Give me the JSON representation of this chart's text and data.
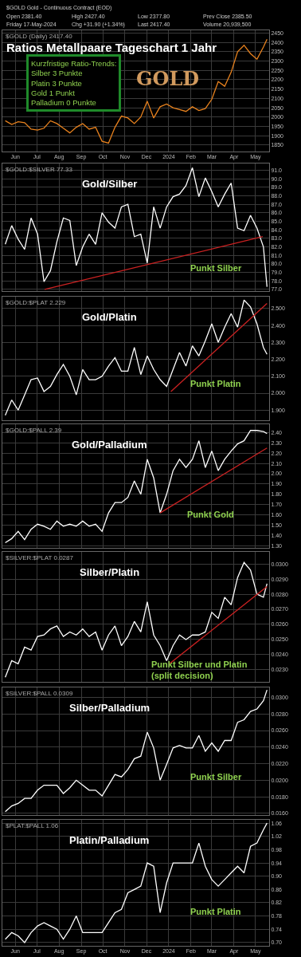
{
  "chart_data": [
    {
      "type": "line",
      "title": "Ratios Metallpaare Tageschart 1 Jahr",
      "subtitle": "$GOLD (Daily) 2417.40",
      "annotations": [
        "Kurzfristige Ratio-Trends:\nSilber 3 Punkte\nPlatin 3 Punkte\nGold 1 Punkt\nPalladium 0 Punkte",
        "GOLD",
        "$GOLD Gold - Continuous Contract (EOD)",
        "Open 2381.40",
        "High 2427.40",
        "Low 2377.80",
        "Prev Close 2385.50",
        "Friday 17-May-2024",
        "Chg +31.90 (+1.34%)",
        "Last 2417.40",
        "Volume 20,939,500"
      ],
      "x": [
        "2023-05-18",
        "2023-05-27",
        "2023-06-05",
        "2023-06-14",
        "2023-06-23",
        "2023-07-02",
        "2023-07-11",
        "2023-07-20",
        "2023-07-29",
        "2023-08-07",
        "2023-08-16",
        "2023-08-25",
        "2023-09-03",
        "2023-09-12",
        "2023-09-21",
        "2023-09-30",
        "2023-10-09",
        "2023-10-18",
        "2023-10-27",
        "2023-11-05",
        "2023-11-14",
        "2023-11-23",
        "2023-12-02",
        "2023-12-11",
        "2023-12-20",
        "2023-12-29",
        "2024-01-07",
        "2024-01-16",
        "2024-01-25",
        "2024-02-03",
        "2024-02-12",
        "2024-02-21",
        "2024-03-01",
        "2024-03-10",
        "2024-03-19",
        "2024-03-28",
        "2024-04-06",
        "2024-04-15",
        "2024-04-24",
        "2024-05-03",
        "2024-05-12",
        "2024-05-17"
      ],
      "series": [
        {
          "color": "#e8821e",
          "values": [
            1980,
            1960,
            1975,
            1970,
            1935,
            1930,
            1940,
            1980,
            1965,
            1940,
            1915,
            1945,
            1965,
            1935,
            1945,
            1870,
            1860,
            1945,
            2005,
            1995,
            1965,
            2000,
            2085,
            1995,
            2055,
            2070,
            2050,
            2040,
            2030,
            2055,
            2035,
            2045,
            2095,
            2190,
            2165,
            2240,
            2350,
            2385,
            2340,
            2310,
            2375,
            2417
          ]
        }
      ],
      "xlim": [
        "2023-05-14",
        "2024-05-20"
      ],
      "xticks": [
        {
          "value": "2023-06-01",
          "label": "Jun"
        },
        {
          "value": "2023-07-01",
          "label": "Jul"
        },
        {
          "value": "2023-08-01",
          "label": "Aug"
        },
        {
          "value": "2023-09-01",
          "label": "Sep"
        },
        {
          "value": "2023-10-01",
          "label": "Oct"
        },
        {
          "value": "2023-11-01",
          "label": "Nov"
        },
        {
          "value": "2023-12-01",
          "label": "Dec"
        },
        {
          "value": "2024-01-01",
          "label": "2024"
        },
        {
          "value": "2024-02-01",
          "label": "Feb"
        },
        {
          "value": "2024-03-01",
          "label": "Mar"
        },
        {
          "value": "2024-04-01",
          "label": "Apr"
        },
        {
          "value": "2024-05-01",
          "label": "May"
        }
      ],
      "ylim": [
        1815,
        2465
      ],
      "yticks": [
        1850,
        1900,
        1950,
        2000,
        2050,
        2100,
        2150,
        2200,
        2250,
        2300,
        2350,
        2400,
        2450
      ],
      "grid": true
    },
    {
      "type": "line",
      "title": "Gold/Silber",
      "subtitle": "$GOLD:$SILVER 77.33",
      "annotations": [
        "Punkt Silber"
      ],
      "x": [
        "2023-05-18",
        "2023-05-27",
        "2023-06-05",
        "2023-06-14",
        "2023-06-23",
        "2023-07-02",
        "2023-07-11",
        "2023-07-20",
        "2023-07-29",
        "2023-08-07",
        "2023-08-16",
        "2023-08-25",
        "2023-09-03",
        "2023-09-12",
        "2023-09-21",
        "2023-09-30",
        "2023-10-09",
        "2023-10-18",
        "2023-10-27",
        "2023-11-05",
        "2023-11-14",
        "2023-11-23",
        "2023-12-02",
        "2023-12-11",
        "2023-12-20",
        "2023-12-29",
        "2024-01-07",
        "2024-01-16",
        "2024-01-25",
        "2024-02-03",
        "2024-02-12",
        "2024-02-21",
        "2024-03-01",
        "2024-03-10",
        "2024-03-19",
        "2024-03-28",
        "2024-04-06",
        "2024-04-15",
        "2024-04-24",
        "2024-05-03",
        "2024-05-12",
        "2024-05-17"
      ],
      "series": [
        {
          "color": "#ffffff",
          "values": [
            82.3,
            84.5,
            82.9,
            81.7,
            85.4,
            83.5,
            77.9,
            79.2,
            82.6,
            85.4,
            85.1,
            79.8,
            82.0,
            83.5,
            82.3,
            86.0,
            84.9,
            84.2,
            86.7,
            87.0,
            83.2,
            83.5,
            80.1,
            86.7,
            84.2,
            86.7,
            87.9,
            88.2,
            89.2,
            91.3,
            87.9,
            90.1,
            88.5,
            86.7,
            88.2,
            89.5,
            84.2,
            83.9,
            85.7,
            84.2,
            82.0,
            77.3
          ]
        },
        {
          "type": "line",
          "color": "#cc2222",
          "x": [
            "2023-07-12",
            "2024-05-11"
          ],
          "values": [
            77.0,
            83.2
          ]
        }
      ],
      "xlim": [
        "2023-05-14",
        "2024-05-20"
      ],
      "xticks": [
        {
          "value": "2023-06-01",
          "label": null
        },
        {
          "value": "2023-07-01",
          "label": null
        },
        {
          "value": "2023-08-01",
          "label": null
        },
        {
          "value": "2023-09-01",
          "label": null
        },
        {
          "value": "2023-10-01",
          "label": null
        },
        {
          "value": "2023-11-01",
          "label": null
        },
        {
          "value": "2023-12-01",
          "label": null
        },
        {
          "value": "2024-01-01",
          "label": null
        },
        {
          "value": "2024-02-01",
          "label": null
        },
        {
          "value": "2024-03-01",
          "label": null
        },
        {
          "value": "2024-04-01",
          "label": null
        },
        {
          "value": "2024-05-01",
          "label": null
        }
      ],
      "ylim": [
        76.8,
        91.8
      ],
      "yticks": [
        {
          "value": 77,
          "label": "77.0"
        },
        {
          "value": 78,
          "label": "78.0"
        },
        {
          "value": 79,
          "label": "79.0"
        },
        {
          "value": 80,
          "label": "80.0"
        },
        {
          "value": 81,
          "label": "81.0"
        },
        {
          "value": 82,
          "label": "82.0"
        },
        {
          "value": 83,
          "label": "83.0"
        },
        {
          "value": 84,
          "label": "84.0"
        },
        {
          "value": 85,
          "label": "85.0"
        },
        {
          "value": 86,
          "label": "86.0"
        },
        {
          "value": 87,
          "label": "87.0"
        },
        {
          "value": 88,
          "label": "88.0"
        },
        {
          "value": 89,
          "label": "89.0"
        },
        {
          "value": 90,
          "label": "90.0"
        },
        {
          "value": 91,
          "label": "91.0"
        }
      ],
      "grid": true,
      "tick_labels": "y"
    },
    {
      "type": "line",
      "title": "Gold/Platin",
      "subtitle": "$GOLD:$PLAT 2.229",
      "annotations": [
        "Punkt Platin"
      ],
      "x": [
        "2023-05-18",
        "2023-05-27",
        "2023-06-05",
        "2023-06-14",
        "2023-06-23",
        "2023-07-02",
        "2023-07-11",
        "2023-07-20",
        "2023-07-29",
        "2023-08-07",
        "2023-08-16",
        "2023-08-25",
        "2023-09-03",
        "2023-09-12",
        "2023-09-21",
        "2023-09-30",
        "2023-10-09",
        "2023-10-18",
        "2023-10-27",
        "2023-11-05",
        "2023-11-14",
        "2023-11-23",
        "2023-12-02",
        "2023-12-11",
        "2023-12-20",
        "2023-12-29",
        "2024-01-07",
        "2024-01-16",
        "2024-01-25",
        "2024-02-03",
        "2024-02-12",
        "2024-02-21",
        "2024-03-01",
        "2024-03-10",
        "2024-03-19",
        "2024-03-28",
        "2024-04-06",
        "2024-04-15",
        "2024-04-24",
        "2024-05-03",
        "2024-05-12",
        "2024-05-17"
      ],
      "series": [
        {
          "color": "#ffffff",
          "values": [
            1.87,
            1.96,
            1.9,
            1.99,
            2.08,
            2.09,
            2.01,
            2.04,
            2.11,
            2.17,
            2.1,
            1.99,
            2.14,
            2.08,
            2.08,
            2.1,
            2.16,
            2.21,
            2.13,
            2.13,
            2.27,
            2.11,
            2.22,
            2.14,
            2.08,
            2.04,
            2.14,
            2.24,
            2.16,
            2.28,
            2.22,
            2.31,
            2.41,
            2.3,
            2.39,
            2.47,
            2.39,
            2.55,
            2.51,
            2.41,
            2.27,
            2.23
          ]
        },
        {
          "type": "line",
          "color": "#cc2222",
          "x": [
            "2024-01-04",
            "2024-05-17"
          ],
          "values": [
            2.01,
            2.53
          ]
        }
      ],
      "xlim": [
        "2023-05-14",
        "2024-05-20"
      ],
      "xticks": [
        {
          "value": "2023-06-01",
          "label": null
        },
        {
          "value": "2023-07-01",
          "label": null
        },
        {
          "value": "2023-08-01",
          "label": null
        },
        {
          "value": "2023-09-01",
          "label": null
        },
        {
          "value": "2023-10-01",
          "label": null
        },
        {
          "value": "2023-11-01",
          "label": null
        },
        {
          "value": "2023-12-01",
          "label": null
        },
        {
          "value": "2024-01-01",
          "label": null
        },
        {
          "value": "2024-02-01",
          "label": null
        },
        {
          "value": "2024-03-01",
          "label": null
        },
        {
          "value": "2024-04-01",
          "label": null
        },
        {
          "value": "2024-05-01",
          "label": null
        }
      ],
      "ylim": [
        1.84,
        2.57
      ],
      "yticks": [
        {
          "value": 1.9,
          "label": "1.900"
        },
        {
          "value": 2.0,
          "label": "2.000"
        },
        {
          "value": 2.1,
          "label": "2.100"
        },
        {
          "value": 2.2,
          "label": "2.200"
        },
        {
          "value": 2.3,
          "label": "2.300"
        },
        {
          "value": 2.4,
          "label": "2.400"
        },
        {
          "value": 2.5,
          "label": "2.500"
        }
      ],
      "grid": true,
      "tick_labels": "y"
    },
    {
      "type": "line",
      "title": "Gold/Palladium",
      "subtitle": "$GOLD:$PALL 2.39",
      "annotations": [
        "Punkt Gold"
      ],
      "x": [
        "2023-05-18",
        "2023-05-27",
        "2023-06-05",
        "2023-06-14",
        "2023-06-23",
        "2023-07-02",
        "2023-07-11",
        "2023-07-20",
        "2023-07-29",
        "2023-08-07",
        "2023-08-16",
        "2023-08-25",
        "2023-09-03",
        "2023-09-12",
        "2023-09-21",
        "2023-09-30",
        "2023-10-09",
        "2023-10-18",
        "2023-10-27",
        "2023-11-05",
        "2023-11-14",
        "2023-11-23",
        "2023-12-02",
        "2023-12-11",
        "2023-12-20",
        "2023-12-29",
        "2024-01-07",
        "2024-01-16",
        "2024-01-25",
        "2024-02-03",
        "2024-02-12",
        "2024-02-21",
        "2024-03-01",
        "2024-03-10",
        "2024-03-19",
        "2024-03-28",
        "2024-04-06",
        "2024-04-15",
        "2024-04-24",
        "2024-05-03",
        "2024-05-12",
        "2024-05-17"
      ],
      "series": [
        {
          "color": "#ffffff",
          "values": [
            1.33,
            1.37,
            1.44,
            1.36,
            1.46,
            1.51,
            1.49,
            1.46,
            1.54,
            1.49,
            1.51,
            1.49,
            1.54,
            1.49,
            1.51,
            1.44,
            1.62,
            1.72,
            1.72,
            1.77,
            1.93,
            1.8,
            2.14,
            1.96,
            1.62,
            1.8,
            2.03,
            2.14,
            2.06,
            2.14,
            2.32,
            2.06,
            2.22,
            2.03,
            2.14,
            2.22,
            2.29,
            2.32,
            2.42,
            2.42,
            2.41,
            2.39
          ]
        },
        {
          "type": "line",
          "color": "#cc2222",
          "x": [
            "2023-12-20",
            "2024-05-17"
          ],
          "values": [
            1.62,
            2.25
          ]
        }
      ],
      "xlim": [
        "2023-05-14",
        "2024-05-20"
      ],
      "xticks": [
        {
          "value": "2023-06-01",
          "label": null
        },
        {
          "value": "2023-07-01",
          "label": null
        },
        {
          "value": "2023-08-01",
          "label": null
        },
        {
          "value": "2023-09-01",
          "label": null
        },
        {
          "value": "2023-10-01",
          "label": null
        },
        {
          "value": "2023-11-01",
          "label": null
        },
        {
          "value": "2023-12-01",
          "label": null
        },
        {
          "value": "2024-01-01",
          "label": null
        },
        {
          "value": "2024-02-01",
          "label": null
        },
        {
          "value": "2024-03-01",
          "label": null
        },
        {
          "value": "2024-04-01",
          "label": null
        },
        {
          "value": "2024-05-01",
          "label": null
        }
      ],
      "ylim": [
        1.28,
        2.48
      ],
      "yticks": [
        {
          "value": 1.3,
          "label": "1.30"
        },
        {
          "value": 1.4,
          "label": "1.40"
        },
        {
          "value": 1.5,
          "label": "1.50"
        },
        {
          "value": 1.6,
          "label": "1.60"
        },
        {
          "value": 1.7,
          "label": "1.70"
        },
        {
          "value": 1.8,
          "label": "1.80"
        },
        {
          "value": 1.9,
          "label": "1.90"
        },
        {
          "value": 2.0,
          "label": "2.00"
        },
        {
          "value": 2.1,
          "label": "2.10"
        },
        {
          "value": 2.2,
          "label": "2.20"
        },
        {
          "value": 2.3,
          "label": "2.30"
        },
        {
          "value": 2.4,
          "label": "2.40"
        }
      ],
      "grid": true,
      "tick_labels": "y"
    },
    {
      "type": "line",
      "title": "Silber/Platin",
      "subtitle": "$SILVER:$PLAT 0.0287",
      "annotations": [
        "Punkt Silber und Platin\n(split decision)"
      ],
      "x": [
        "2023-05-18",
        "2023-05-27",
        "2023-06-05",
        "2023-06-14",
        "2023-06-23",
        "2023-07-02",
        "2023-07-11",
        "2023-07-20",
        "2023-07-29",
        "2023-08-07",
        "2023-08-16",
        "2023-08-25",
        "2023-09-03",
        "2023-09-12",
        "2023-09-21",
        "2023-09-30",
        "2023-10-09",
        "2023-10-18",
        "2023-10-27",
        "2023-11-05",
        "2023-11-14",
        "2023-11-23",
        "2023-12-02",
        "2023-12-11",
        "2023-12-20",
        "2023-12-29",
        "2024-01-07",
        "2024-01-16",
        "2024-01-25",
        "2024-02-03",
        "2024-02-12",
        "2024-02-21",
        "2024-03-01",
        "2024-03-10",
        "2024-03-19",
        "2024-03-28",
        "2024-04-06",
        "2024-04-15",
        "2024-04-24",
        "2024-05-03",
        "2024-05-12",
        "2024-05-17"
      ],
      "series": [
        {
          "color": "#ffffff",
          "values": [
            0.0225,
            0.0236,
            0.0234,
            0.0245,
            0.0243,
            0.0252,
            0.0253,
            0.0257,
            0.0259,
            0.0252,
            0.0255,
            0.0253,
            0.0257,
            0.0252,
            0.0255,
            0.0243,
            0.0253,
            0.0259,
            0.0246,
            0.0252,
            0.0262,
            0.0255,
            0.0275,
            0.0253,
            0.0246,
            0.0236,
            0.0246,
            0.0253,
            0.025,
            0.0253,
            0.0253,
            0.0255,
            0.0268,
            0.0264,
            0.0278,
            0.0273,
            0.0291,
            0.0301,
            0.0296,
            0.028,
            0.0278,
            0.0287
          ]
        },
        {
          "type": "line",
          "color": "#cc2222",
          "x": [
            "2024-01-02",
            "2024-05-17"
          ],
          "values": [
            0.0234,
            0.0285
          ]
        }
      ],
      "xlim": [
        "2023-05-14",
        "2024-05-20"
      ],
      "xticks": [
        {
          "value": "2023-06-01",
          "label": null
        },
        {
          "value": "2023-07-01",
          "label": null
        },
        {
          "value": "2023-08-01",
          "label": null
        },
        {
          "value": "2023-09-01",
          "label": null
        },
        {
          "value": "2023-10-01",
          "label": null
        },
        {
          "value": "2023-11-01",
          "label": null
        },
        {
          "value": "2023-12-01",
          "label": null
        },
        {
          "value": "2024-01-01",
          "label": null
        },
        {
          "value": "2024-02-01",
          "label": null
        },
        {
          "value": "2024-03-01",
          "label": null
        },
        {
          "value": "2024-04-01",
          "label": null
        },
        {
          "value": "2024-05-01",
          "label": null
        }
      ],
      "ylim": [
        0.0222,
        0.0308
      ],
      "yticks": [
        {
          "value": 0.023,
          "label": "0.0230"
        },
        {
          "value": 0.024,
          "label": "0.0240"
        },
        {
          "value": 0.025,
          "label": "0.0250"
        },
        {
          "value": 0.026,
          "label": "0.0260"
        },
        {
          "value": 0.027,
          "label": "0.0270"
        },
        {
          "value": 0.028,
          "label": "0.0280"
        },
        {
          "value": 0.029,
          "label": "0.0290"
        },
        {
          "value": 0.03,
          "label": "0.0300"
        }
      ],
      "grid": true,
      "tick_labels": "y"
    },
    {
      "type": "line",
      "title": "Silber/Palladium",
      "subtitle": "$SILVER:$PALL 0.0309",
      "annotations": [
        "Punkt Silber"
      ],
      "x": [
        "2023-05-18",
        "2023-05-27",
        "2023-06-05",
        "2023-06-14",
        "2023-06-23",
        "2023-07-02",
        "2023-07-11",
        "2023-07-20",
        "2023-07-29",
        "2023-08-07",
        "2023-08-16",
        "2023-08-25",
        "2023-09-03",
        "2023-09-12",
        "2023-09-21",
        "2023-09-30",
        "2023-10-09",
        "2023-10-18",
        "2023-10-27",
        "2023-11-05",
        "2023-11-14",
        "2023-11-23",
        "2023-12-02",
        "2023-12-11",
        "2023-12-20",
        "2023-12-29",
        "2024-01-07",
        "2024-01-16",
        "2024-01-25",
        "2024-02-03",
        "2024-02-12",
        "2024-02-21",
        "2024-03-01",
        "2024-03-10",
        "2024-03-19",
        "2024-03-28",
        "2024-04-06",
        "2024-04-15",
        "2024-04-24",
        "2024-05-03",
        "2024-05-12",
        "2024-05-17"
      ],
      "series": [
        {
          "color": "#ffffff",
          "values": [
            0.0162,
            0.0169,
            0.0172,
            0.0178,
            0.0178,
            0.0188,
            0.0194,
            0.0194,
            0.0194,
            0.0184,
            0.0191,
            0.02,
            0.0194,
            0.0188,
            0.0188,
            0.0181,
            0.0194,
            0.0207,
            0.0204,
            0.0213,
            0.0226,
            0.0229,
            0.0258,
            0.0239,
            0.02,
            0.0219,
            0.0239,
            0.0242,
            0.0239,
            0.0239,
            0.0254,
            0.0235,
            0.0245,
            0.0235,
            0.0248,
            0.0248,
            0.027,
            0.0273,
            0.0283,
            0.0286,
            0.0296,
            0.0309
          ]
        }
      ],
      "xlim": [
        "2023-05-14",
        "2024-05-20"
      ],
      "xticks": [
        {
          "value": "2023-06-01",
          "label": null
        },
        {
          "value": "2023-07-01",
          "label": null
        },
        {
          "value": "2023-08-01",
          "label": null
        },
        {
          "value": "2023-09-01",
          "label": null
        },
        {
          "value": "2023-10-01",
          "label": null
        },
        {
          "value": "2023-11-01",
          "label": null
        },
        {
          "value": "2023-12-01",
          "label": null
        },
        {
          "value": "2024-01-01",
          "label": null
        },
        {
          "value": "2024-02-01",
          "label": null
        },
        {
          "value": "2024-03-01",
          "label": null
        },
        {
          "value": "2024-04-01",
          "label": null
        },
        {
          "value": "2024-05-01",
          "label": null
        }
      ],
      "ylim": [
        0.0158,
        0.0312
      ],
      "yticks": [
        {
          "value": 0.016,
          "label": "0.0160"
        },
        {
          "value": 0.018,
          "label": "0.0180"
        },
        {
          "value": 0.02,
          "label": "0.0200"
        },
        {
          "value": 0.022,
          "label": "0.0220"
        },
        {
          "value": 0.024,
          "label": "0.0240"
        },
        {
          "value": 0.026,
          "label": "0.0260"
        },
        {
          "value": 0.028,
          "label": "0.0280"
        },
        {
          "value": 0.03,
          "label": "0.0300"
        }
      ],
      "grid": true,
      "tick_labels": "y"
    },
    {
      "type": "line",
      "title": "Platin/Palladium",
      "subtitle": "$PLAT:$PALL 1.06",
      "annotations": [
        "Punkt Platin"
      ],
      "x": [
        "2023-05-18",
        "2023-05-27",
        "2023-06-05",
        "2023-06-14",
        "2023-06-23",
        "2023-07-02",
        "2023-07-11",
        "2023-07-20",
        "2023-07-29",
        "2023-08-07",
        "2023-08-16",
        "2023-08-25",
        "2023-09-03",
        "2023-09-12",
        "2023-09-21",
        "2023-09-30",
        "2023-10-09",
        "2023-10-18",
        "2023-10-27",
        "2023-11-05",
        "2023-11-14",
        "2023-11-23",
        "2023-12-02",
        "2023-12-11",
        "2023-12-20",
        "2023-12-29",
        "2024-01-07",
        "2024-01-16",
        "2024-01-25",
        "2024-02-03",
        "2024-02-12",
        "2024-02-21",
        "2024-03-01",
        "2024-03-10",
        "2024-03-19",
        "2024-03-28",
        "2024-04-06",
        "2024-04-15",
        "2024-04-24",
        "2024-05-03",
        "2024-05-12",
        "2024-05-17"
      ],
      "series": [
        {
          "color": "#ffffff",
          "values": [
            0.71,
            0.73,
            0.72,
            0.7,
            0.73,
            0.75,
            0.76,
            0.75,
            0.74,
            0.71,
            0.74,
            0.78,
            0.73,
            0.73,
            0.73,
            0.73,
            0.76,
            0.79,
            0.8,
            0.85,
            0.86,
            0.87,
            0.94,
            0.93,
            0.79,
            0.88,
            0.94,
            0.94,
            0.94,
            0.94,
            1.0,
            0.93,
            0.89,
            0.87,
            0.89,
            0.91,
            0.93,
            0.91,
            0.99,
            1.0,
            1.04,
            1.06
          ]
        }
      ],
      "xlim": [
        "2023-05-14",
        "2024-05-20"
      ],
      "xticks": [
        {
          "value": "2023-06-01",
          "label": "Jun"
        },
        {
          "value": "2023-07-01",
          "label": "Jul"
        },
        {
          "value": "2023-08-01",
          "label": "Aug"
        },
        {
          "value": "2023-09-01",
          "label": "Sep"
        },
        {
          "value": "2023-10-01",
          "label": "Oct"
        },
        {
          "value": "2023-11-01",
          "label": "Nov"
        },
        {
          "value": "2023-12-01",
          "label": "Dec"
        },
        {
          "value": "2024-01-01",
          "label": "2024"
        },
        {
          "value": "2024-02-01",
          "label": "Feb"
        },
        {
          "value": "2024-03-01",
          "label": "Mar"
        },
        {
          "value": "2024-04-01",
          "label": "Apr"
        },
        {
          "value": "2024-05-01",
          "label": "May"
        }
      ],
      "ylim": [
        0.69,
        1.07
      ],
      "yticks": [
        {
          "value": 0.7,
          "label": "0.70"
        },
        {
          "value": 0.74,
          "label": "0.74"
        },
        {
          "value": 0.78,
          "label": "0.78"
        },
        {
          "value": 0.82,
          "label": "0.82"
        },
        {
          "value": 0.86,
          "label": "0.86"
        },
        {
          "value": 0.9,
          "label": "0.90"
        },
        {
          "value": 0.94,
          "label": "0.94"
        },
        {
          "value": 0.98,
          "label": "0.98"
        },
        {
          "value": 1.02,
          "label": "1.02"
        },
        {
          "value": 1.06,
          "label": "1.06"
        }
      ],
      "grid": true
    }
  ]
}
